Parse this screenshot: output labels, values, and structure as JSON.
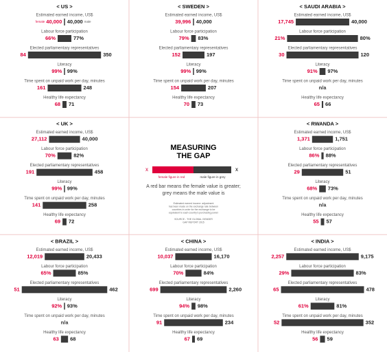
{
  "panels": [
    {
      "title": "< US >",
      "labels": {
        "female": "female",
        "male": "male"
      },
      "metrics": [
        {
          "label": "Estimated earned income, US$",
          "values": [
            40000,
            40000
          ],
          "value_labels": [
            "40,000",
            "40,000"
          ]
        },
        {
          "label": "Labour force participation",
          "values": [
            66,
            77
          ],
          "value_labels": [
            "66%",
            "77%"
          ]
        },
        {
          "label": "Elected parliamentary representatives",
          "values": [
            84,
            350
          ],
          "value_labels": [
            "84",
            "350"
          ]
        },
        {
          "label": "Literacy",
          "values": [
            99,
            99
          ],
          "value_labels": [
            "99%",
            "99%"
          ]
        },
        {
          "label": "Time spent on unpaid work per day, minutes",
          "values": [
            161,
            248
          ],
          "value_labels": [
            "161",
            "248"
          ]
        },
        {
          "label": "Healthy life expectancy",
          "values": [
            68,
            71
          ],
          "value_labels": [
            "68",
            "71"
          ]
        }
      ]
    },
    {
      "title": "< SWEDEN >",
      "metrics": [
        {
          "label": "Estimated earned income, US$",
          "values": [
            39996,
            40000
          ],
          "value_labels": [
            "39,996",
            "40,000"
          ]
        },
        {
          "label": "Labour force participation",
          "values": [
            79,
            83
          ],
          "value_labels": [
            "79%",
            "83%"
          ]
        },
        {
          "label": "Elected parliamentary representatives",
          "values": [
            152,
            197
          ],
          "value_labels": [
            "152",
            "197"
          ]
        },
        {
          "label": "Literacy",
          "values": [
            99,
            99
          ],
          "value_labels": [
            "99%",
            "99%"
          ]
        },
        {
          "label": "Time spent on unpaid work per day, minutes",
          "values": [
            154,
            207
          ],
          "value_labels": [
            "154",
            "207"
          ]
        },
        {
          "label": "Healthy life expectancy",
          "values": [
            70,
            73
          ],
          "value_labels": [
            "70",
            "73"
          ]
        }
      ]
    },
    {
      "title": "< SAUDI ARABIA >",
      "metrics": [
        {
          "label": "Estimated earned income, US$",
          "values": [
            17745,
            40000
          ],
          "value_labels": [
            "17,745",
            "40,000"
          ]
        },
        {
          "label": "Labour force participation",
          "values": [
            21,
            80
          ],
          "value_labels": [
            "21%",
            "80%"
          ]
        },
        {
          "label": "Elected parliamentary representatives",
          "values": [
            30,
            120
          ],
          "value_labels": [
            "30",
            "120"
          ]
        },
        {
          "label": "Literacy",
          "values": [
            91,
            97
          ],
          "value_labels": [
            "91%",
            "97%"
          ]
        },
        {
          "label": "Time spent on unpaid work per day, minutes",
          "text": "n/a"
        },
        {
          "label": "Healthy life expectancy",
          "values": [
            65,
            66
          ],
          "value_labels": [
            "65",
            "66"
          ]
        }
      ]
    },
    {
      "title": "< UK >",
      "metrics": [
        {
          "label": "Estimated earned income, US$",
          "values": [
            27112,
            40000
          ],
          "value_labels": [
            "27,112",
            "40,000"
          ]
        },
        {
          "label": "Labour force participation",
          "values": [
            70,
            82
          ],
          "value_labels": [
            "70%",
            "82%"
          ]
        },
        {
          "label": "Elected parliamentary representatives",
          "values": [
            191,
            458
          ],
          "value_labels": [
            "191",
            "458"
          ]
        },
        {
          "label": "Literacy",
          "values": [
            99,
            99
          ],
          "value_labels": [
            "99%",
            "99%"
          ]
        },
        {
          "label": "Time spent on unpaid work per day, minutes",
          "values": [
            141,
            258
          ],
          "value_labels": [
            "141",
            "258"
          ]
        },
        {
          "label": "Healthy life expectancy",
          "values": [
            69,
            72
          ],
          "value_labels": [
            "69",
            "72"
          ]
        }
      ]
    },
    {
      "title": "< RWANDA >",
      "metrics": [
        {
          "label": "Estimated earned income, US$",
          "values": [
            1371,
            1751
          ],
          "value_labels": [
            "1,371",
            "1,751"
          ]
        },
        {
          "label": "Labour force participation",
          "values": [
            86,
            88
          ],
          "value_labels": [
            "86%",
            "88%"
          ]
        },
        {
          "label": "Elected parliamentary representatives",
          "values": [
            29,
            51
          ],
          "value_labels": [
            "29",
            "51"
          ]
        },
        {
          "label": "Literacy",
          "values": [
            68,
            73
          ],
          "value_labels": [
            "68%",
            "73%"
          ]
        },
        {
          "label": "Time spent on unpaid work per day, minutes",
          "text": "n/a"
        },
        {
          "label": "Healthy life expectancy",
          "values": [
            55,
            57
          ],
          "value_labels": [
            "55",
            "57"
          ]
        }
      ]
    },
    {
      "title": "< BRAZIL >",
      "metrics": [
        {
          "label": "Estimated earned income, US$",
          "values": [
            12019,
            20433
          ],
          "value_labels": [
            "12,019",
            "20,433"
          ]
        },
        {
          "label": "Labour force participation",
          "values": [
            65,
            85
          ],
          "value_labels": [
            "65%",
            "85%"
          ]
        },
        {
          "label": "Elected parliamentary representatives",
          "values": [
            51,
            462
          ],
          "value_labels": [
            "51",
            "462"
          ]
        },
        {
          "label": "Literacy",
          "values": [
            92,
            93
          ],
          "value_labels": [
            "92%",
            "93%"
          ]
        },
        {
          "label": "Time spent on unpaid work per day, minutes",
          "text": "n/a"
        },
        {
          "label": "Healthy life expectancy",
          "values": [
            63,
            68
          ],
          "value_labels": [
            "63",
            "68"
          ]
        }
      ]
    },
    {
      "title": "< CHINA >",
      "metrics": [
        {
          "label": "Estimated earned income, US$",
          "values": [
            10037,
            16170
          ],
          "value_labels": [
            "10,037",
            "16,170"
          ]
        },
        {
          "label": "Labour force participation",
          "values": [
            70,
            84
          ],
          "value_labels": [
            "70%",
            "84%"
          ]
        },
        {
          "label": "Elected parliamentary representatives",
          "values": [
            699,
            2260
          ],
          "value_labels": [
            "699",
            "2,260"
          ]
        },
        {
          "label": "Literacy",
          "values": [
            94,
            98
          ],
          "value_labels": [
            "94%",
            "98%"
          ]
        },
        {
          "label": "Time spent on unpaid work per day, minutes",
          "values": [
            91,
            234
          ],
          "value_labels": [
            "91",
            "234"
          ]
        },
        {
          "label": "Healthy life expectancy",
          "values": [
            67,
            69
          ],
          "value_labels": [
            "67",
            "69"
          ]
        }
      ]
    },
    {
      "title": "< INDIA >",
      "metrics": [
        {
          "label": "Estimated earned income, US$",
          "values": [
            2257,
            9175
          ],
          "value_labels": [
            "2,257",
            "9,175"
          ]
        },
        {
          "label": "Labour force participation",
          "values": [
            29,
            83
          ],
          "value_labels": [
            "29%",
            "83%"
          ]
        },
        {
          "label": "Elected parliamentary representatives",
          "values": [
            65,
            478
          ],
          "value_labels": [
            "65",
            "478"
          ]
        },
        {
          "label": "Literacy",
          "values": [
            61,
            81
          ],
          "value_labels": [
            "61%",
            "81%"
          ]
        },
        {
          "label": "Time spent on unpaid work per day, minutes",
          "values": [
            52,
            352
          ],
          "value_labels": [
            "52",
            "352"
          ]
        },
        {
          "label": "Healthy life expectancy",
          "values": [
            56,
            59
          ],
          "value_labels": [
            "56",
            "59"
          ]
        }
      ]
    }
  ],
  "legend": {
    "title": [
      "MEASURING",
      "THE GAP"
    ],
    "marker": "x",
    "female": "female figure in red",
    "male": "male figure in grey",
    "description": [
      "A red bar means the female value is greater;",
      "grey means the male value is"
    ],
    "note": [
      "Estimated earned income: adjustment",
      "has been made on the exchange rate between",
      "countries in order for the exchange to be",
      "equivalent to each country's purchasing power"
    ],
    "source": [
      "SOURCE - THE GLOBAL GENDER",
      "GAP REPORT 2015"
    ]
  }
}
